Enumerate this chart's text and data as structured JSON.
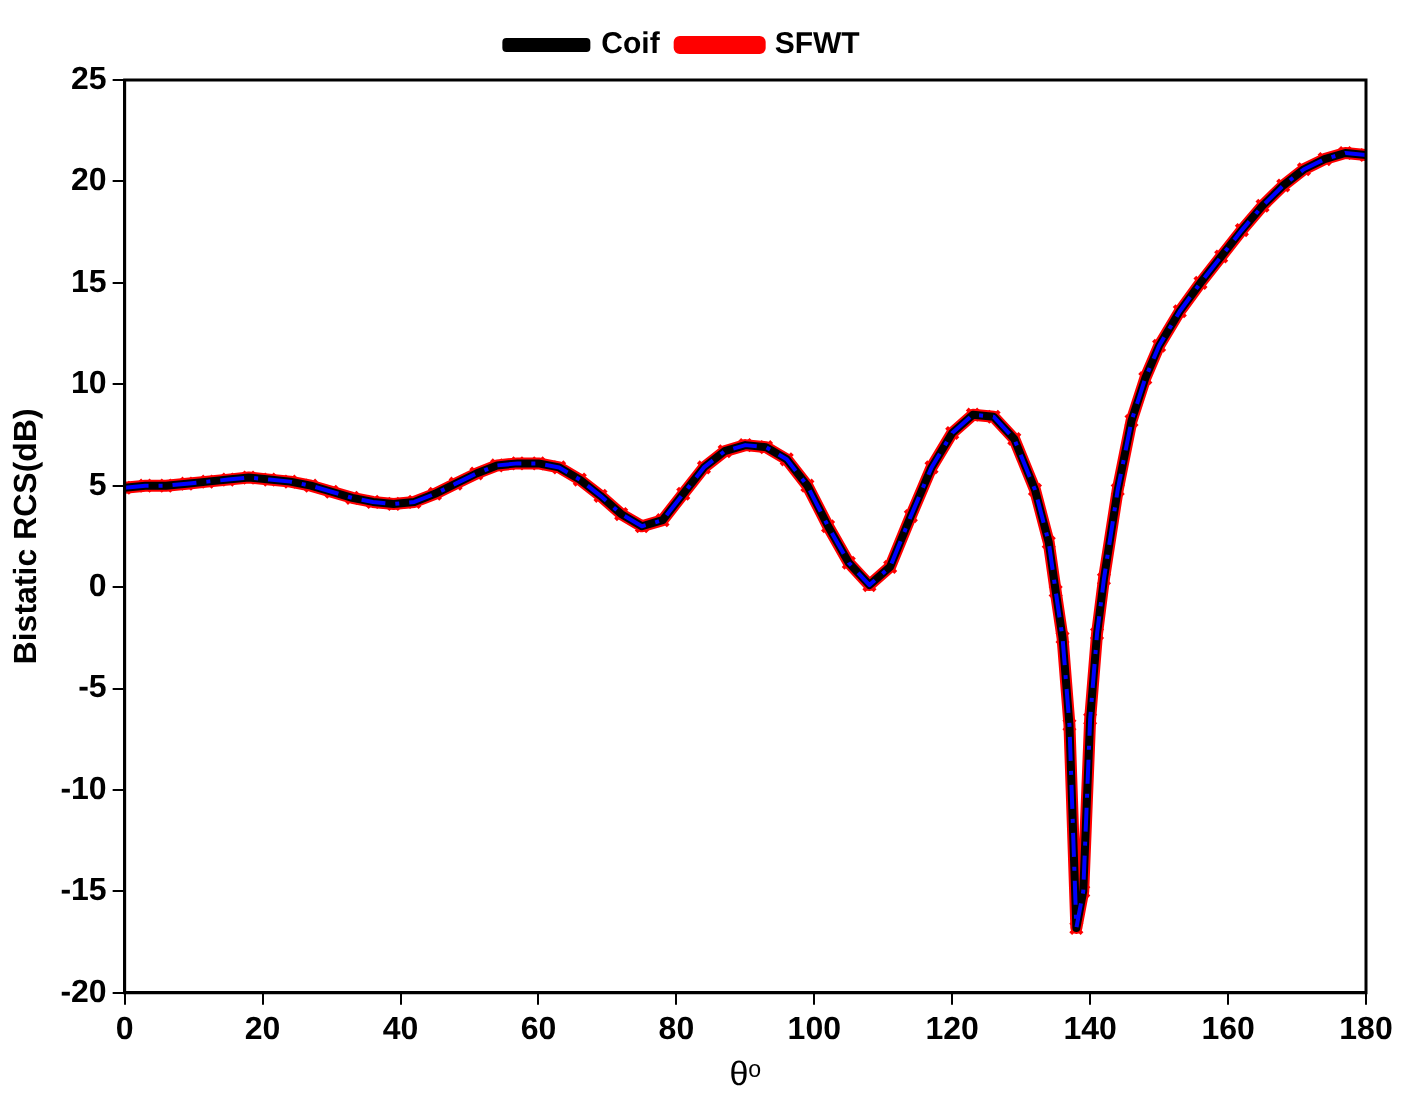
{
  "chart_data": {
    "type": "line",
    "xlabel": "θᵒ",
    "ylabel": "Bistatic RCS(dB)",
    "x": [
      0,
      3,
      6,
      9,
      12,
      15,
      18,
      21,
      24,
      27,
      30,
      33,
      36,
      39,
      42,
      45,
      48,
      51,
      54,
      57,
      60,
      63,
      66,
      69,
      72,
      75,
      78,
      81,
      84,
      87,
      90,
      93,
      96,
      99,
      102,
      105,
      108,
      111,
      114,
      117,
      120,
      123,
      126,
      129,
      132,
      134,
      135,
      136,
      137,
      138,
      139,
      140,
      141,
      142,
      144,
      146,
      148,
      150,
      153,
      156,
      159,
      162,
      165,
      168,
      171,
      174,
      177,
      180
    ],
    "series": [
      {
        "name": "SFWT",
        "color": "#ff0000",
        "marker": "cross",
        "line_style": "solid",
        "values": [
          4.9,
          5.0,
          5.0,
          5.1,
          5.2,
          5.3,
          5.4,
          5.3,
          5.2,
          5.0,
          4.7,
          4.4,
          4.2,
          4.1,
          4.2,
          4.6,
          5.1,
          5.6,
          6.0,
          6.1,
          6.1,
          5.9,
          5.3,
          4.5,
          3.6,
          3.0,
          3.3,
          4.6,
          5.9,
          6.7,
          7.0,
          6.9,
          6.3,
          5.0,
          3.0,
          1.2,
          0.1,
          1.0,
          3.5,
          5.9,
          7.6,
          8.5,
          8.4,
          7.3,
          4.8,
          2.2,
          -0.2,
          -2.5,
          -6.8,
          -16.8,
          -15,
          -6.5,
          -2.3,
          0.4,
          4.8,
          8.2,
          10.3,
          11.9,
          13.6,
          15.0,
          16.3,
          17.6,
          18.8,
          19.8,
          20.6,
          21.1,
          21.4,
          21.3
        ]
      },
      {
        "name": "Coif",
        "color": "#000000",
        "marker": "none",
        "line_style": "solid",
        "values": [
          4.9,
          5.0,
          5.0,
          5.1,
          5.2,
          5.3,
          5.4,
          5.3,
          5.2,
          5.0,
          4.7,
          4.4,
          4.2,
          4.1,
          4.2,
          4.6,
          5.1,
          5.6,
          6.0,
          6.1,
          6.1,
          5.9,
          5.3,
          4.5,
          3.6,
          3.0,
          3.3,
          4.6,
          5.9,
          6.7,
          7.0,
          6.9,
          6.3,
          5.0,
          3.0,
          1.2,
          0.1,
          1.0,
          3.5,
          5.9,
          7.6,
          8.5,
          8.4,
          7.3,
          4.8,
          2.2,
          -0.2,
          -2.5,
          -6.8,
          -16.8,
          -15,
          -6.5,
          -2.3,
          0.4,
          4.8,
          8.2,
          10.3,
          11.9,
          13.6,
          15.0,
          16.3,
          17.6,
          18.8,
          19.8,
          20.6,
          21.1,
          21.4,
          21.3
        ]
      },
      {
        "color": "#0000ff",
        "marker": "none",
        "line_style": "dashed",
        "values": [
          4.9,
          5.0,
          5.0,
          5.1,
          5.2,
          5.3,
          5.4,
          5.3,
          5.2,
          5.0,
          4.7,
          4.4,
          4.2,
          4.1,
          4.2,
          4.6,
          5.1,
          5.6,
          6.0,
          6.1,
          6.1,
          5.9,
          5.3,
          4.5,
          3.6,
          3.0,
          3.3,
          4.6,
          5.9,
          6.7,
          7.0,
          6.9,
          6.3,
          5.0,
          3.0,
          1.2,
          0.1,
          1.0,
          3.5,
          5.9,
          7.6,
          8.5,
          8.4,
          7.3,
          4.8,
          2.2,
          -0.2,
          -2.5,
          -6.8,
          -16.8,
          -15,
          -6.5,
          -2.3,
          0.4,
          4.8,
          8.2,
          10.3,
          11.9,
          13.6,
          15.0,
          16.3,
          17.6,
          18.8,
          19.8,
          20.6,
          21.1,
          21.4,
          21.3
        ]
      }
    ],
    "xlim": [
      0,
      180
    ],
    "xticks": [
      0,
      20,
      40,
      60,
      80,
      100,
      120,
      140,
      160,
      180
    ],
    "ylim": [
      -20,
      25
    ],
    "yticks": [
      -20,
      -15,
      -10,
      -5,
      0,
      5,
      10,
      15,
      20,
      25
    ],
    "grid": false,
    "legend": "top"
  }
}
